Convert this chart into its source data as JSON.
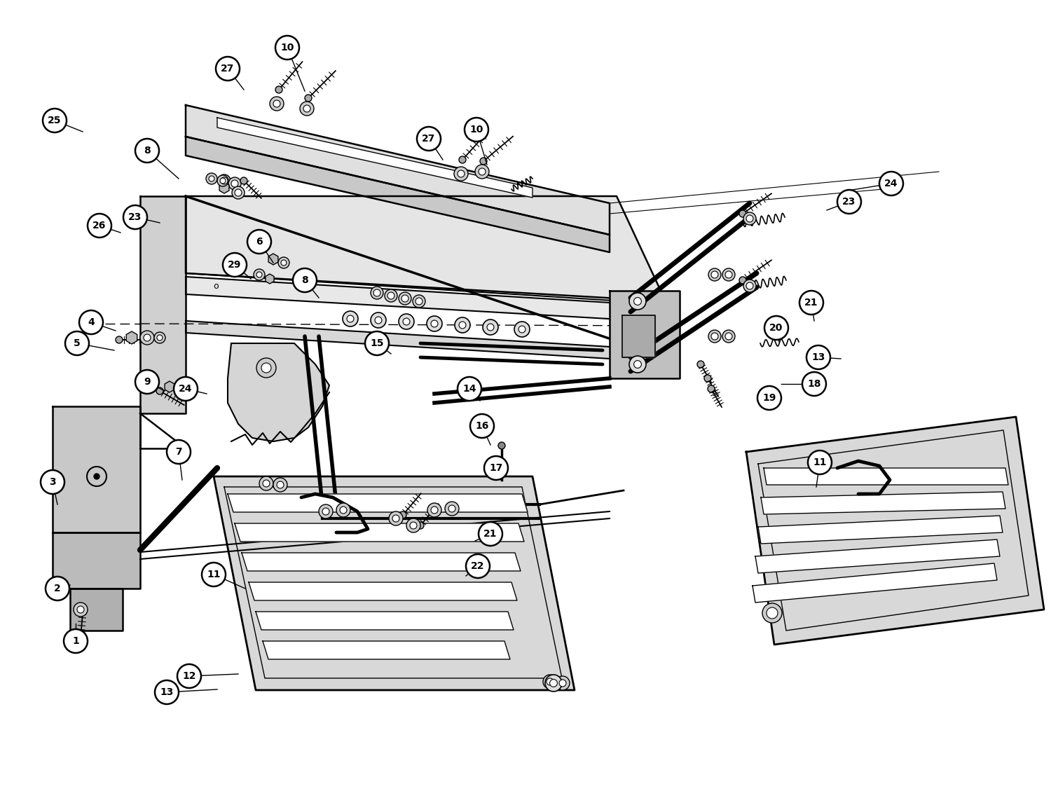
{
  "bg_color": "#ffffff",
  "line_color": "#000000",
  "figsize": [
    15.0,
    11.29
  ],
  "dpi": 100,
  "callouts": [
    [
      "1",
      108,
      915,
      108,
      890
    ],
    [
      "2",
      82,
      840,
      100,
      835
    ],
    [
      "3",
      75,
      688,
      82,
      720
    ],
    [
      "4",
      130,
      460,
      165,
      472
    ],
    [
      "5",
      110,
      490,
      163,
      500
    ],
    [
      "6",
      370,
      345,
      390,
      375
    ],
    [
      "7",
      255,
      645,
      260,
      685
    ],
    [
      "8",
      210,
      215,
      255,
      255
    ],
    [
      "8",
      435,
      400,
      455,
      425
    ],
    [
      "9",
      210,
      545,
      235,
      558
    ],
    [
      "10",
      410,
      68,
      435,
      130
    ],
    [
      "10",
      680,
      185,
      695,
      235
    ],
    [
      "11",
      305,
      820,
      350,
      840
    ],
    [
      "11",
      1170,
      660,
      1165,
      695
    ],
    [
      "12",
      270,
      965,
      340,
      962
    ],
    [
      "13",
      238,
      988,
      310,
      984
    ],
    [
      "13",
      1168,
      510,
      1200,
      512
    ],
    [
      "14",
      670,
      555,
      685,
      572
    ],
    [
      "15",
      538,
      490,
      558,
      505
    ],
    [
      "16",
      688,
      608,
      700,
      635
    ],
    [
      "17",
      708,
      668,
      715,
      685
    ],
    [
      "18",
      1162,
      548,
      1115,
      548
    ],
    [
      "19",
      1098,
      568,
      1093,
      578
    ],
    [
      "20",
      1108,
      468,
      1112,
      488
    ],
    [
      "21",
      1158,
      432,
      1162,
      458
    ],
    [
      "21",
      700,
      762,
      678,
      772
    ],
    [
      "22",
      682,
      808,
      665,
      822
    ],
    [
      "23",
      193,
      310,
      228,
      318
    ],
    [
      "23",
      1212,
      288,
      1180,
      300
    ],
    [
      "24",
      1272,
      262,
      1210,
      272
    ],
    [
      "24",
      265,
      555,
      295,
      562
    ],
    [
      "25",
      78,
      172,
      118,
      188
    ],
    [
      "26",
      142,
      322,
      172,
      332
    ],
    [
      "27",
      325,
      98,
      348,
      128
    ],
    [
      "27",
      612,
      198,
      632,
      228
    ],
    [
      "29",
      335,
      378,
      358,
      398
    ]
  ]
}
